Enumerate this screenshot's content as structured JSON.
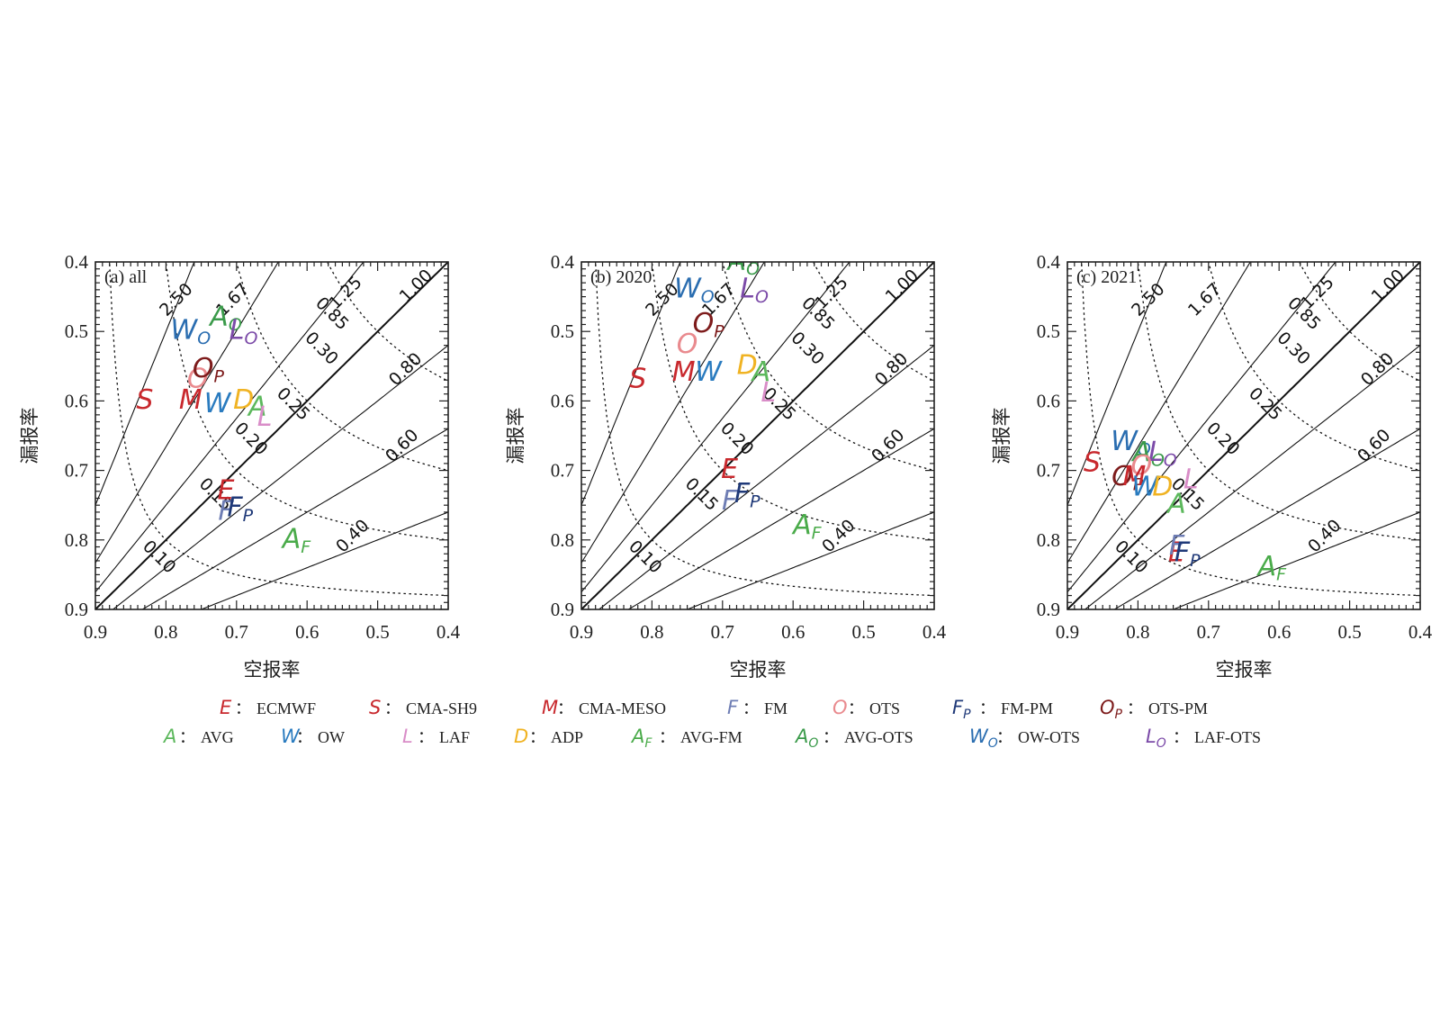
{
  "chart_data": [
    {
      "type": "scatter",
      "title": "(a) all",
      "xlabel": "空报率",
      "ylabel": "漏报率",
      "xlim": [
        0.9,
        0.4
      ],
      "ylim": [
        0.9,
        0.4
      ],
      "xticks": [
        "0.9",
        "0.8",
        "0.7",
        "0.6",
        "0.5",
        "0.4"
      ],
      "yticks": [
        "0.4",
        "0.5",
        "0.6",
        "0.7",
        "0.8",
        "0.9"
      ],
      "bias_lines": [
        "2.50",
        "1.67",
        "1.25",
        "1.00",
        "0.80",
        "0.60",
        "0.40"
      ],
      "ts_lines": [
        "0.85",
        "0.30",
        "0.25",
        "0.20",
        "0.15",
        "0.10"
      ],
      "points": [
        {
          "key": "S",
          "x": 0.83,
          "y": 0.6
        },
        {
          "key": "M",
          "x": 0.765,
          "y": 0.6
        },
        {
          "key": "O",
          "x": 0.755,
          "y": 0.57
        },
        {
          "key": "OP",
          "x": 0.74,
          "y": 0.555
        },
        {
          "key": "WO",
          "x": 0.765,
          "y": 0.5
        },
        {
          "key": "AO",
          "x": 0.715,
          "y": 0.48
        },
        {
          "key": "LO",
          "x": 0.69,
          "y": 0.5
        },
        {
          "key": "W",
          "x": 0.727,
          "y": 0.605
        },
        {
          "key": "D",
          "x": 0.69,
          "y": 0.6
        },
        {
          "key": "A",
          "x": 0.67,
          "y": 0.61
        },
        {
          "key": "L",
          "x": 0.66,
          "y": 0.625
        },
        {
          "key": "E",
          "x": 0.715,
          "y": 0.73
        },
        {
          "key": "F",
          "x": 0.715,
          "y": 0.76
        },
        {
          "key": "FP",
          "x": 0.695,
          "y": 0.755
        },
        {
          "key": "AF",
          "x": 0.615,
          "y": 0.8
        }
      ]
    },
    {
      "type": "scatter",
      "title": "(b) 2020",
      "xlabel": "空报率",
      "ylabel": "漏报率",
      "xlim": [
        0.9,
        0.4
      ],
      "ylim": [
        0.9,
        0.4
      ],
      "xticks": [
        "0.9",
        "0.8",
        "0.7",
        "0.6",
        "0.5",
        "0.4"
      ],
      "yticks": [
        "0.4",
        "0.5",
        "0.6",
        "0.7",
        "0.8",
        "0.9"
      ],
      "bias_lines": [
        "2.50",
        "1.67",
        "1.25",
        "1.00",
        "0.80",
        "0.60",
        "0.40"
      ],
      "ts_lines": [
        "0.85",
        "0.30",
        "0.25",
        "0.20",
        "0.15",
        "0.10"
      ],
      "points": [
        {
          "key": "AO",
          "x": 0.67,
          "y": 0.4
        },
        {
          "key": "WO",
          "x": 0.74,
          "y": 0.44
        },
        {
          "key": "LO",
          "x": 0.655,
          "y": 0.44
        },
        {
          "key": "OP",
          "x": 0.72,
          "y": 0.49
        },
        {
          "key": "O",
          "x": 0.75,
          "y": 0.52
        },
        {
          "key": "S",
          "x": 0.82,
          "y": 0.57
        },
        {
          "key": "M",
          "x": 0.755,
          "y": 0.56
        },
        {
          "key": "W",
          "x": 0.72,
          "y": 0.56
        },
        {
          "key": "D",
          "x": 0.665,
          "y": 0.55
        },
        {
          "key": "A",
          "x": 0.645,
          "y": 0.56
        },
        {
          "key": "L",
          "x": 0.635,
          "y": 0.59
        },
        {
          "key": "E",
          "x": 0.69,
          "y": 0.7
        },
        {
          "key": "F",
          "x": 0.69,
          "y": 0.745
        },
        {
          "key": "FP",
          "x": 0.665,
          "y": 0.735
        },
        {
          "key": "AF",
          "x": 0.58,
          "y": 0.78
        }
      ]
    },
    {
      "type": "scatter",
      "title": "(c) 2021",
      "xlabel": "空报率",
      "ylabel": "漏报率",
      "xlim": [
        0.9,
        0.4
      ],
      "ylim": [
        0.9,
        0.4
      ],
      "xticks": [
        "0.9",
        "0.8",
        "0.7",
        "0.6",
        "0.5",
        "0.4"
      ],
      "yticks": [
        "0.4",
        "0.5",
        "0.6",
        "0.7",
        "0.8",
        "0.9"
      ],
      "bias_lines": [
        "2.50",
        "1.67",
        "1.25",
        "1.00",
        "0.80",
        "0.60",
        "0.40"
      ],
      "ts_lines": [
        "0.85",
        "0.30",
        "0.25",
        "0.20",
        "0.15",
        "0.10"
      ],
      "points": [
        {
          "key": "S",
          "x": 0.865,
          "y": 0.69
        },
        {
          "key": "WO",
          "x": 0.81,
          "y": 0.66
        },
        {
          "key": "AO",
          "x": 0.785,
          "y": 0.675
        },
        {
          "key": "LO",
          "x": 0.765,
          "y": 0.675
        },
        {
          "key": "O",
          "x": 0.795,
          "y": 0.695
        },
        {
          "key": "OP",
          "x": 0.815,
          "y": 0.71
        },
        {
          "key": "M",
          "x": 0.805,
          "y": 0.71
        },
        {
          "key": "W",
          "x": 0.79,
          "y": 0.725
        },
        {
          "key": "D",
          "x": 0.765,
          "y": 0.725
        },
        {
          "key": "L",
          "x": 0.725,
          "y": 0.715
        },
        {
          "key": "A",
          "x": 0.745,
          "y": 0.75
        },
        {
          "key": "E",
          "x": 0.745,
          "y": 0.82
        },
        {
          "key": "F",
          "x": 0.745,
          "y": 0.81
        },
        {
          "key": "FP",
          "x": 0.73,
          "y": 0.82
        },
        {
          "key": "AF",
          "x": 0.61,
          "y": 0.84
        }
      ]
    }
  ],
  "legend": [
    {
      "key": "E",
      "sym": "E",
      "sub": "",
      "label": "ECMWF",
      "color": "#c8282d"
    },
    {
      "key": "S",
      "sym": "S",
      "sub": "",
      "label": "CMA-SH9",
      "color": "#c8282d"
    },
    {
      "key": "M",
      "sym": "M",
      "sub": "",
      "label": "CMA-MESO",
      "color": "#c8282d"
    },
    {
      "key": "F",
      "sym": "F",
      "sub": "",
      "label": "FM",
      "color": "#6e7db4"
    },
    {
      "key": "O",
      "sym": "O",
      "sub": "",
      "label": "OTS",
      "color": "#e98a8e"
    },
    {
      "key": "FP",
      "sym": "F",
      "sub": "P",
      "label": "FM-PM",
      "color": "#1f3978"
    },
    {
      "key": "OP",
      "sym": "O",
      "sub": "P",
      "label": "OTS-PM",
      "color": "#7d1b1b"
    },
    {
      "key": "A",
      "sym": "A",
      "sub": "",
      "label": "AVG",
      "color": "#5cb85c"
    },
    {
      "key": "W",
      "sym": "W",
      "sub": "",
      "label": "OW",
      "color": "#2a7bbf"
    },
    {
      "key": "L",
      "sym": "L",
      "sub": "",
      "label": "LAF",
      "color": "#d98dc8"
    },
    {
      "key": "D",
      "sym": "D",
      "sub": "",
      "label": "ADP",
      "color": "#f0b323"
    },
    {
      "key": "AF",
      "sym": "A",
      "sub": "F",
      "label": "AVG-FM",
      "color": "#4aab4a"
    },
    {
      "key": "AO",
      "sym": "A",
      "sub": "O",
      "label": "AVG-OTS",
      "color": "#3a9a4a"
    },
    {
      "key": "WO",
      "sym": "W",
      "sub": "O",
      "label": "OW-OTS",
      "color": "#2a6db0"
    },
    {
      "key": "LO",
      "sym": "L",
      "sub": "O",
      "label": "LAF-OTS",
      "color": "#7b4aa8"
    }
  ]
}
